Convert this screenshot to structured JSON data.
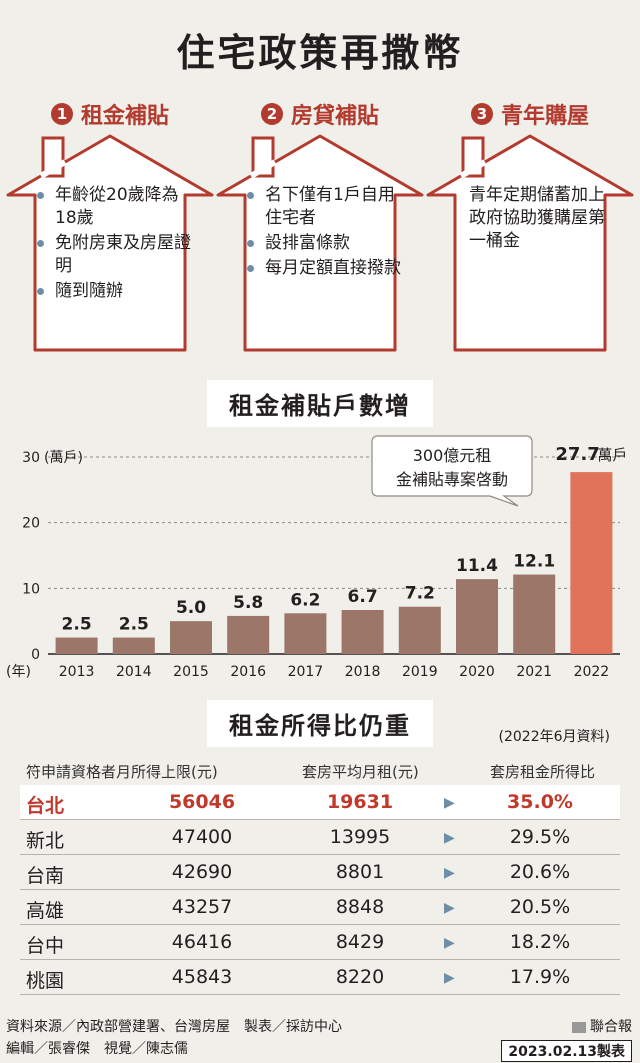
{
  "title": "住宅政策再撒幣",
  "policies": [
    {
      "num": "1",
      "title": "租金補貼",
      "bullets": [
        "年齡從20歲降為18歲",
        "免附房東及房屋證明",
        "隨到隨辦"
      ]
    },
    {
      "num": "2",
      "title": "房貸補貼",
      "bullets": [
        "名下僅有1戶自用住宅者",
        "設排富條款",
        "每月定額直接撥款"
      ]
    },
    {
      "num": "3",
      "title": "青年購屋",
      "text": "青年定期儲蓄加上政府協助獲購屋第一桶金"
    }
  ],
  "chart_title": "租金補貼戶數增",
  "chart_data": {
    "type": "bar",
    "categories": [
      "2013",
      "2014",
      "2015",
      "2016",
      "2017",
      "2018",
      "2019",
      "2020",
      "2021",
      "2022"
    ],
    "values": [
      2.5,
      2.5,
      5.0,
      5.8,
      6.2,
      6.7,
      7.2,
      11.4,
      12.1,
      27.7
    ],
    "value_labels": [
      "2.5",
      "2.5",
      "5.0",
      "5.8",
      "6.2",
      "6.7",
      "7.2",
      "11.4",
      "12.1",
      "27.7"
    ],
    "last_value_unit": "萬戶",
    "y_ticks": [
      "0",
      "10",
      "20",
      "30"
    ],
    "ylim": [
      0,
      30
    ],
    "y_unit": "(萬戶)",
    "x_unit": "(年)",
    "annotation": "300億元租金補貼專案啓動",
    "bar_color": "#9b7669",
    "highlight_color": "#e0735a"
  },
  "table": {
    "title": "租金所得比仍重",
    "note": "(2022年6月資料)",
    "headers": [
      "符申請資格者月所得上限(元)",
      "套房平均月租(元)",
      "套房租金所得比"
    ],
    "rows": [
      {
        "city": "台北",
        "income": "56046",
        "rent": "19631",
        "ratio": "35.0%"
      },
      {
        "city": "新北",
        "income": "47400",
        "rent": "13995",
        "ratio": "29.5%"
      },
      {
        "city": "台南",
        "income": "42690",
        "rent": "8801",
        "ratio": "20.6%"
      },
      {
        "city": "高雄",
        "income": "43257",
        "rent": "8848",
        "ratio": "20.5%"
      },
      {
        "city": "台中",
        "income": "46416",
        "rent": "8429",
        "ratio": "18.2%"
      },
      {
        "city": "桃園",
        "income": "45843",
        "rent": "8220",
        "ratio": "17.9%"
      }
    ],
    "arrow": "▶"
  },
  "footer": {
    "line1": "資料來源／內政部營建署、台灣房屋　製表／採訪中心",
    "line2": "編輯／張睿傑　視覺／陳志儒",
    "paper": "聯合報",
    "date": "2023.02.13製表"
  },
  "colors": {
    "accent": "#b23a2e",
    "bullet": "#6e8ea7",
    "house_stroke": "#b23a2e"
  }
}
